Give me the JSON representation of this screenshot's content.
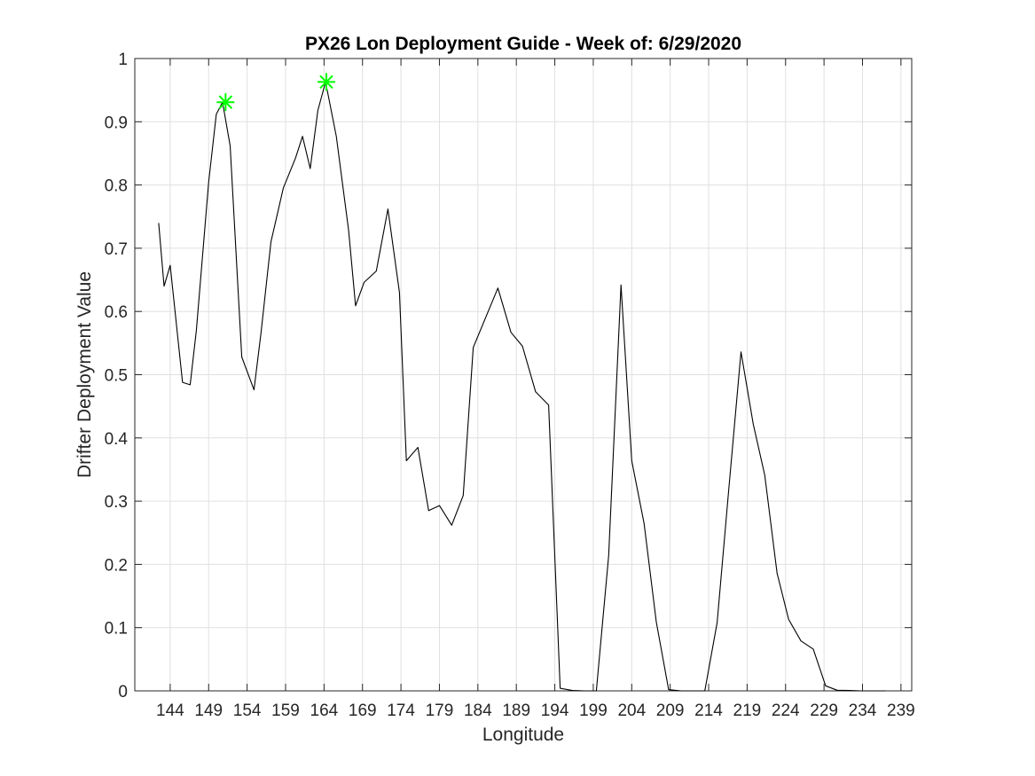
{
  "chart_data": {
    "type": "line",
    "title": "PX26 Lon Deployment Guide - Week of: 6/29/2020",
    "xlabel": "Longitude",
    "ylabel": "Drifter Deployment Value",
    "xlim": [
      139.4,
      240.4
    ],
    "ylim": [
      0,
      1
    ],
    "xticks": [
      144,
      149,
      154,
      159,
      164,
      169,
      174,
      179,
      184,
      189,
      194,
      199,
      204,
      209,
      214,
      219,
      224,
      229,
      234,
      239
    ],
    "yticks": [
      0,
      0.1,
      0.2,
      0.3,
      0.4,
      0.5,
      0.6,
      0.7,
      0.8,
      0.9,
      1
    ],
    "ytick_labels": [
      "0",
      "0.1",
      "0.2",
      "0.3",
      "0.4",
      "0.5",
      "0.6",
      "0.7",
      "0.8",
      "0.9",
      "1"
    ],
    "grid": true,
    "colors": {
      "line": "#000000",
      "marker": "#00ff00",
      "grid": "#e0e0e0",
      "axis": "#262626"
    },
    "series": [
      {
        "x": [
          142.5,
          143.2,
          144.0,
          145.6,
          146.6,
          147.4,
          149.0,
          150.0,
          150.8,
          151.8,
          153.3,
          154.9,
          155.8,
          157.1,
          158.7,
          160.3,
          161.2,
          162.2,
          163.2,
          164.2,
          165.6,
          167.2,
          168.1,
          169.2,
          170.8,
          172.3,
          173.8,
          174.7,
          176.2,
          177.6,
          179.0,
          180.6,
          182.1,
          183.4,
          186.6,
          188.3,
          189.8,
          191.5,
          193.2,
          194.7,
          196.3,
          197.8,
          199.4,
          201.0,
          202.6,
          204.0,
          205.6,
          207.2,
          208.8,
          210.4,
          211.9,
          213.5,
          215.1,
          216.6,
          218.2,
          219.8,
          221.3,
          222.9,
          224.4,
          226.0,
          227.6,
          229.2,
          230.7,
          232.3,
          233.8,
          235.4,
          237.0
        ],
        "y": [
          0.74,
          0.64,
          0.673,
          0.488,
          0.484,
          0.57,
          0.805,
          0.912,
          0.931,
          0.862,
          0.528,
          0.476,
          0.565,
          0.71,
          0.795,
          0.843,
          0.877,
          0.826,
          0.918,
          0.963,
          0.877,
          0.728,
          0.609,
          0.646,
          0.664,
          0.762,
          0.63,
          0.364,
          0.385,
          0.285,
          0.293,
          0.262,
          0.309,
          0.543,
          0.637,
          0.567,
          0.545,
          0.473,
          0.452,
          0.004,
          0.0005,
          0,
          0,
          0.214,
          0.642,
          0.364,
          0.265,
          0.109,
          0.002,
          0,
          0,
          0,
          0.108,
          0.317,
          0.536,
          0.422,
          0.341,
          0.186,
          0.113,
          0.079,
          0.066,
          0.008,
          0.001,
          0.0005,
          0,
          0,
          0
        ]
      }
    ],
    "markers": [
      {
        "x": 151.2,
        "y": 0.931
      },
      {
        "x": 164.3,
        "y": 0.963
      }
    ]
  }
}
